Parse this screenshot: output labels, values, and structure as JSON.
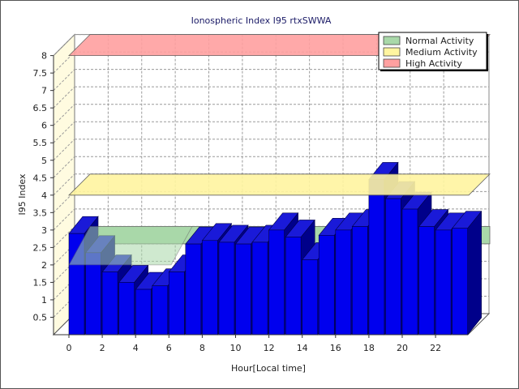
{
  "chart_data": {
    "type": "bar",
    "title": "Ionospheric Index I95 rtxSWWA",
    "xlabel": "Hour[Local time]",
    "ylabel": "I95 Index",
    "ylim": [
      0,
      8
    ],
    "yticks": [
      "0.5",
      "1",
      "1.5",
      "2",
      "2.5",
      "3",
      "3.5",
      "4",
      "4.5",
      "5",
      "5.5",
      "6",
      "6.5",
      "7",
      "7.5",
      "8"
    ],
    "xticks": [
      "0",
      "2",
      "4",
      "6",
      "8",
      "10",
      "12",
      "14",
      "16",
      "18",
      "20",
      "22"
    ],
    "hours": [
      0,
      1,
      2,
      3,
      4,
      5,
      6,
      7,
      8,
      9,
      10,
      11,
      12,
      13,
      14,
      15,
      16,
      17,
      18,
      19,
      20,
      21,
      22,
      23
    ],
    "values": [
      2.9,
      2.35,
      1.8,
      1.5,
      1.3,
      1.4,
      1.8,
      2.6,
      2.7,
      2.65,
      2.6,
      2.65,
      3.0,
      2.8,
      2.15,
      2.85,
      3.0,
      3.1,
      4.45,
      3.9,
      3.6,
      3.1,
      3.0,
      3.05
    ],
    "bands": [
      {
        "name": "Normal Activity",
        "from": 2.0,
        "to": 2.5,
        "color": "#a9d8a9"
      },
      {
        "name": "Medium Activity",
        "from": 4.0,
        "to": 4.0,
        "color": "#fff5a0"
      },
      {
        "name": "High Activity",
        "from": 8.0,
        "to": 8.0,
        "color": "#ffa0a0"
      }
    ],
    "legend_position": "top-right",
    "grid": true,
    "colors": {
      "bar_front": "#0000ee",
      "bar_top": "#1a1ad8",
      "bar_side": "#00008a",
      "back_wall": "#ffffff",
      "left_wall": "#fffbe0",
      "grid": "#9a9a9a"
    }
  }
}
